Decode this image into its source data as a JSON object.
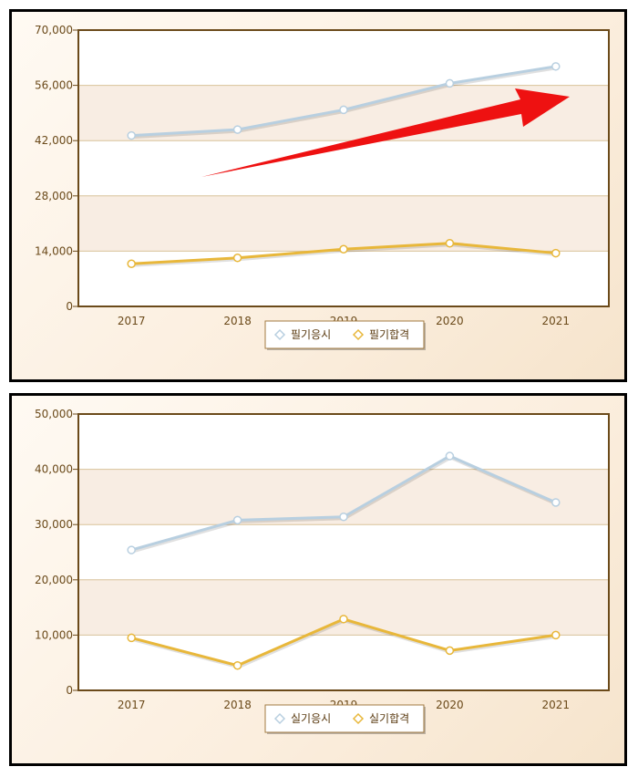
{
  "chart_data": [
    {
      "type": "line",
      "categories": [
        "2017",
        "2018",
        "2019",
        "2020",
        "2021"
      ],
      "yticks": [
        "0",
        "14,000",
        "28,000",
        "42,000",
        "56,000",
        "70,000"
      ],
      "ylim": [
        0,
        70000
      ],
      "grid": true,
      "legend": "bottom-center",
      "annotation": "red upward trend arrow",
      "series": [
        {
          "name": "필기응시",
          "color": "#b8cfe0",
          "values": [
            43300,
            44800,
            49800,
            56500,
            60800
          ]
        },
        {
          "name": "필기합격",
          "color": "#e8b73a",
          "values": [
            10800,
            12300,
            14500,
            16000,
            13500
          ]
        }
      ]
    },
    {
      "type": "line",
      "categories": [
        "2017",
        "2018",
        "2019",
        "2020",
        "2021"
      ],
      "yticks": [
        "0",
        "10,000",
        "20,000",
        "30,000",
        "40,000",
        "50,000"
      ],
      "ylim": [
        0,
        50000
      ],
      "grid": true,
      "legend": "bottom-center",
      "series": [
        {
          "name": "실기응시",
          "color": "#b8cfe0",
          "values": [
            25400,
            30800,
            31400,
            42400,
            34000
          ]
        },
        {
          "name": "실기합격",
          "color": "#e8b73a",
          "values": [
            9500,
            4500,
            12900,
            7200,
            10000
          ]
        }
      ]
    }
  ]
}
